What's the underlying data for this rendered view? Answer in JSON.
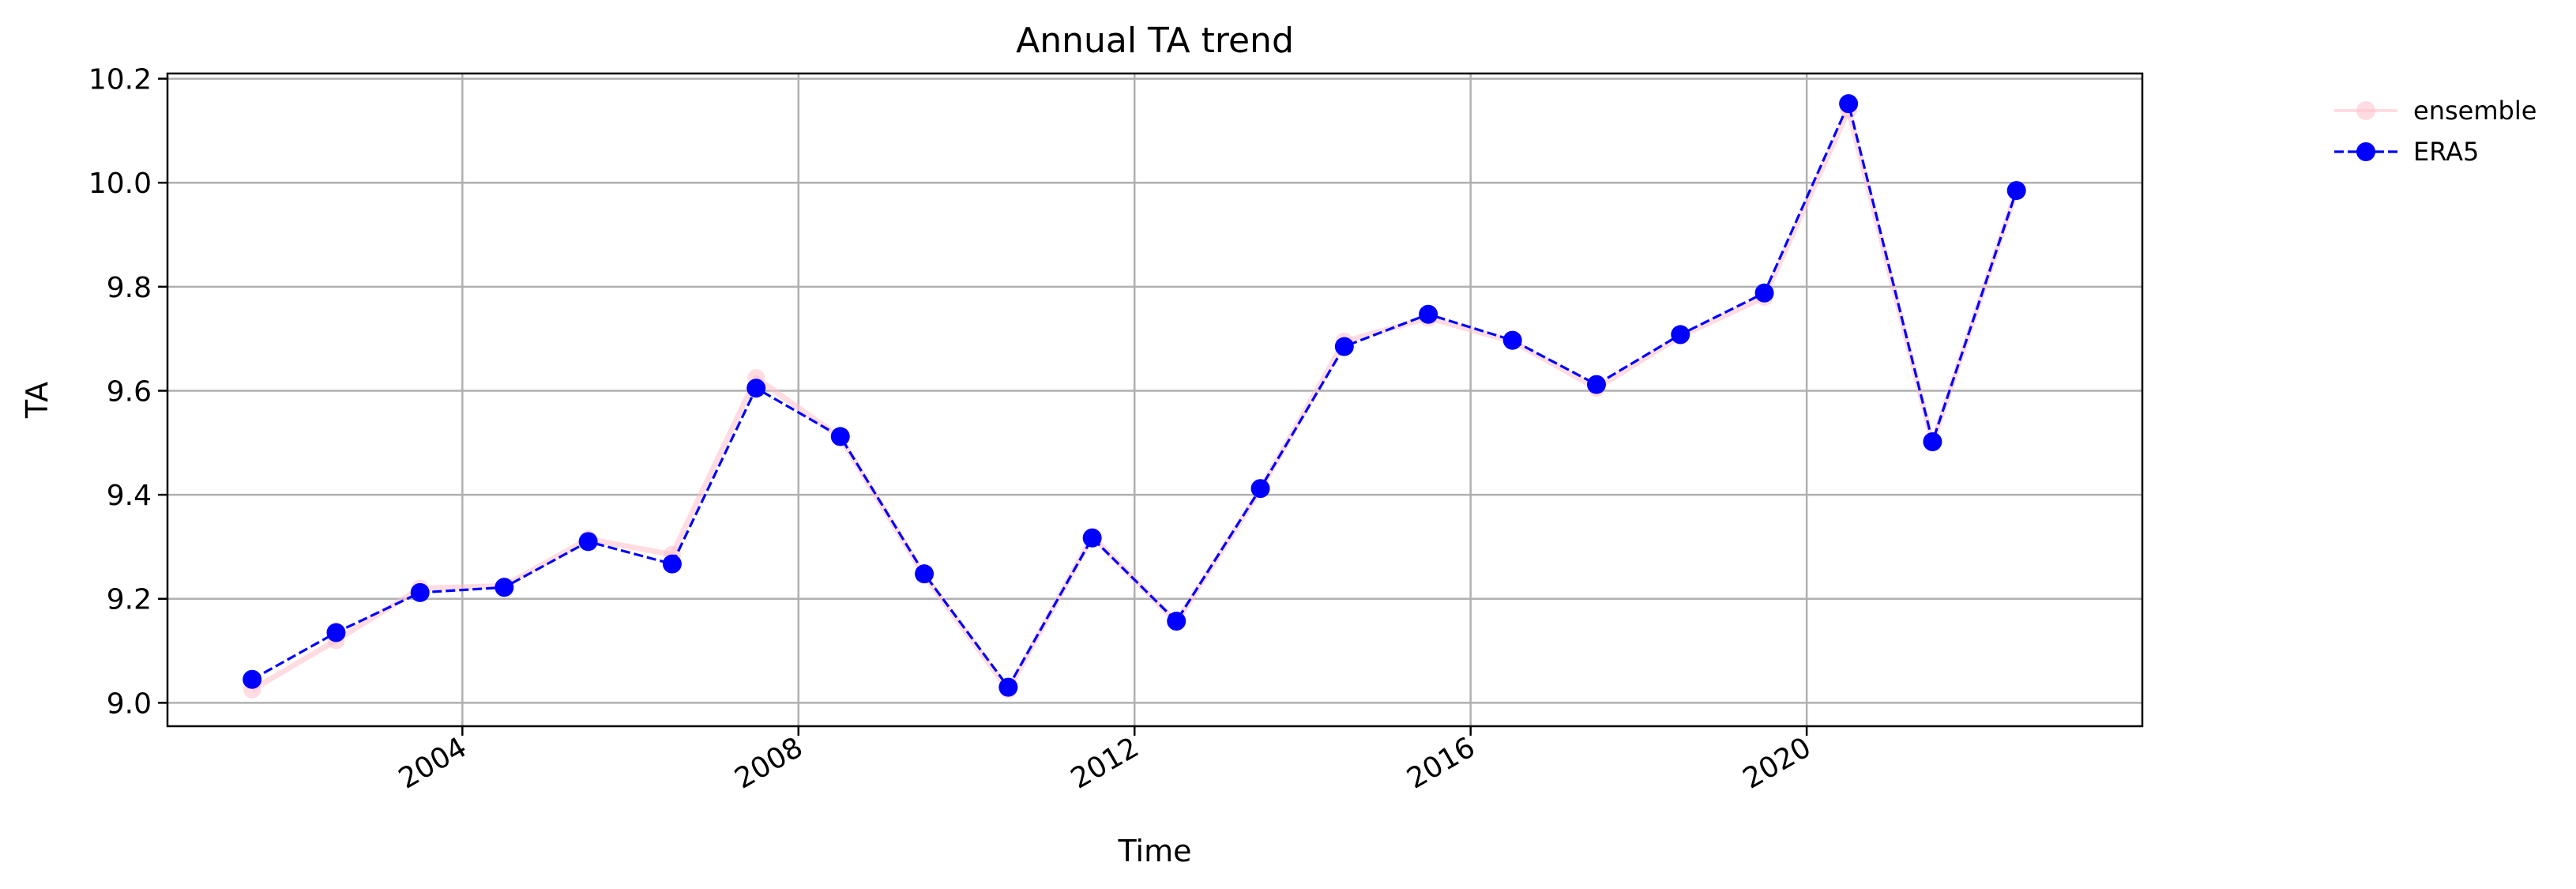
{
  "chart_data": {
    "type": "line",
    "title": "Annual TA trend",
    "xlabel": "Time",
    "ylabel": "TA",
    "x_tick_labels": [
      "2004",
      "2008",
      "2012",
      "2016",
      "2020"
    ],
    "y_tick_labels": [
      "9.0",
      "9.2",
      "9.4",
      "9.6",
      "9.8",
      "10.0",
      "10.2"
    ],
    "y_ticks": [
      9.0,
      9.2,
      9.4,
      9.6,
      9.8,
      10.0,
      10.2
    ],
    "x_tick_years": [
      2004,
      2008,
      2012,
      2016,
      2020
    ],
    "xlim": [
      "2000-06-28",
      "2023-12-30"
    ],
    "ylim": [
      8.955,
      10.21
    ],
    "grid": true,
    "legend_position": "outside-top-right",
    "x": [
      "2001-07-01",
      "2002-07-01",
      "2003-07-01",
      "2004-07-01",
      "2005-07-01",
      "2006-07-01",
      "2007-07-01",
      "2008-07-01",
      "2009-07-01",
      "2010-07-01",
      "2011-07-01",
      "2012-07-01",
      "2013-07-01",
      "2014-07-01",
      "2015-07-01",
      "2016-07-01",
      "2017-07-01",
      "2018-07-01",
      "2019-07-01",
      "2020-07-01",
      "2021-07-01",
      "2022-07-01"
    ],
    "series": [
      {
        "name": "ensemble",
        "color": "#ffc0cb",
        "style": "solid",
        "values": [
          9.025,
          9.12,
          9.22,
          9.225,
          9.315,
          9.285,
          9.625,
          9.51,
          9.245,
          9.025,
          9.32,
          9.155,
          9.41,
          9.695,
          9.74,
          9.695,
          9.605,
          9.705,
          9.78,
          10.14,
          9.5,
          9.985
        ]
      },
      {
        "name": "ERA5",
        "color": "#0000ff",
        "style": "dashed",
        "values": [
          9.045,
          9.135,
          9.212,
          9.222,
          9.31,
          9.267,
          9.605,
          9.512,
          9.248,
          9.03,
          9.317,
          9.157,
          9.412,
          9.685,
          9.747,
          9.697,
          9.612,
          9.708,
          9.788,
          10.152,
          9.502,
          9.985
        ]
      }
    ]
  }
}
